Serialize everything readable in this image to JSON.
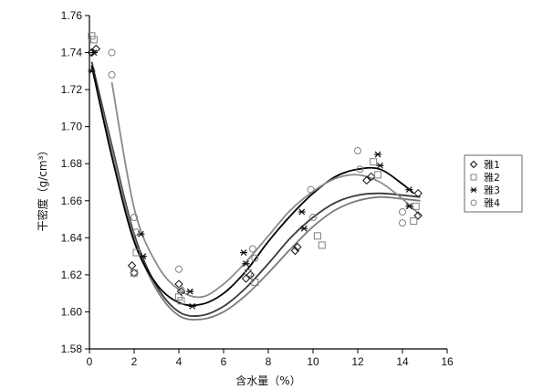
{
  "chart_data": {
    "type": "scatter",
    "title": "",
    "xlabel": "含水量（%）",
    "ylabel": "干密度（g/cm³）",
    "xlim": [
      0,
      16
    ],
    "ylim": [
      1.58,
      1.76
    ],
    "x_ticks": [
      0,
      2,
      4,
      6,
      8,
      10,
      12,
      14,
      16
    ],
    "y_ticks": [
      1.58,
      1.6,
      1.62,
      1.64,
      1.66,
      1.68,
      1.7,
      1.72,
      1.74,
      1.76
    ],
    "legend_position": "right",
    "grid": false,
    "series": [
      {
        "name": "雅1",
        "marker": "diamond",
        "points": [
          [
            0.1,
            1.74
          ],
          [
            0.3,
            1.742
          ],
          [
            1.9,
            1.625
          ],
          [
            2.0,
            1.621
          ],
          [
            4.0,
            1.615
          ],
          [
            4.1,
            1.611
          ],
          [
            7.0,
            1.618
          ],
          [
            7.2,
            1.62
          ],
          [
            9.2,
            1.633
          ],
          [
            9.3,
            1.635
          ],
          [
            12.4,
            1.671
          ],
          [
            12.6,
            1.673
          ],
          [
            14.7,
            1.664
          ],
          [
            14.7,
            1.652
          ]
        ],
        "fit": [
          [
            0.1,
            1.735
          ],
          [
            1.0,
            1.69
          ],
          [
            2.0,
            1.642
          ],
          [
            3.0,
            1.614
          ],
          [
            4.0,
            1.6
          ],
          [
            5.0,
            1.598
          ],
          [
            6.0,
            1.603
          ],
          [
            7.0,
            1.613
          ],
          [
            8.0,
            1.626
          ],
          [
            9.0,
            1.64
          ],
          [
            10.0,
            1.651
          ],
          [
            11.0,
            1.659
          ],
          [
            12.0,
            1.663
          ],
          [
            13.0,
            1.664
          ],
          [
            14.0,
            1.663
          ],
          [
            14.8,
            1.662
          ]
        ]
      },
      {
        "name": "雅2",
        "marker": "square",
        "points": [
          [
            0.1,
            1.749
          ],
          [
            0.2,
            1.747
          ],
          [
            2.0,
            1.621
          ],
          [
            2.1,
            1.632
          ],
          [
            4.0,
            1.608
          ],
          [
            4.1,
            1.606
          ],
          [
            7.1,
            1.621
          ],
          [
            7.4,
            1.616
          ],
          [
            10.2,
            1.641
          ],
          [
            10.4,
            1.636
          ],
          [
            12.7,
            1.681
          ],
          [
            12.9,
            1.674
          ],
          [
            14.5,
            1.649
          ],
          [
            14.6,
            1.657
          ]
        ],
        "fit": [
          [
            0.1,
            1.732
          ],
          [
            1.0,
            1.688
          ],
          [
            2.0,
            1.64
          ],
          [
            3.0,
            1.612
          ],
          [
            4.0,
            1.598
          ],
          [
            5.0,
            1.596
          ],
          [
            6.0,
            1.6
          ],
          [
            7.0,
            1.609
          ],
          [
            8.0,
            1.621
          ],
          [
            9.0,
            1.634
          ],
          [
            10.0,
            1.646
          ],
          [
            11.0,
            1.655
          ],
          [
            12.0,
            1.66
          ],
          [
            13.0,
            1.662
          ],
          [
            14.0,
            1.661
          ],
          [
            14.8,
            1.66
          ]
        ]
      },
      {
        "name": "雅3",
        "marker": "star",
        "points": [
          [
            0.1,
            1.73
          ],
          [
            0.2,
            1.74
          ],
          [
            2.3,
            1.642
          ],
          [
            2.4,
            1.63
          ],
          [
            4.5,
            1.611
          ],
          [
            4.6,
            1.603
          ],
          [
            6.9,
            1.632
          ],
          [
            7.0,
            1.626
          ],
          [
            9.5,
            1.654
          ],
          [
            9.6,
            1.645
          ],
          [
            12.9,
            1.685
          ],
          [
            13.0,
            1.679
          ],
          [
            14.3,
            1.666
          ],
          [
            14.3,
            1.657
          ]
        ],
        "fit": [
          [
            0.1,
            1.733
          ],
          [
            1.0,
            1.684
          ],
          [
            2.0,
            1.638
          ],
          [
            3.0,
            1.615
          ],
          [
            4.0,
            1.605
          ],
          [
            5.0,
            1.604
          ],
          [
            6.0,
            1.61
          ],
          [
            7.0,
            1.622
          ],
          [
            8.0,
            1.638
          ],
          [
            9.0,
            1.652
          ],
          [
            10.0,
            1.664
          ],
          [
            11.0,
            1.673
          ],
          [
            12.0,
            1.677
          ],
          [
            13.0,
            1.677
          ],
          [
            14.0,
            1.669
          ],
          [
            14.5,
            1.664
          ]
        ]
      },
      {
        "name": "雅4",
        "marker": "circle",
        "points": [
          [
            1.0,
            1.74
          ],
          [
            1.0,
            1.728
          ],
          [
            2.0,
            1.651
          ],
          [
            2.1,
            1.643
          ],
          [
            4.0,
            1.623
          ],
          [
            4.1,
            1.612
          ],
          [
            7.3,
            1.634
          ],
          [
            7.4,
            1.629
          ],
          [
            9.9,
            1.666
          ],
          [
            10.0,
            1.651
          ],
          [
            12.0,
            1.687
          ],
          [
            12.1,
            1.677
          ],
          [
            14.0,
            1.654
          ],
          [
            14.0,
            1.648
          ]
        ],
        "fit": [
          [
            1.0,
            1.724
          ],
          [
            2.0,
            1.656
          ],
          [
            3.0,
            1.626
          ],
          [
            4.0,
            1.612
          ],
          [
            5.0,
            1.608
          ],
          [
            6.0,
            1.615
          ],
          [
            7.0,
            1.627
          ],
          [
            8.0,
            1.641
          ],
          [
            9.0,
            1.655
          ],
          [
            10.0,
            1.665
          ],
          [
            11.0,
            1.672
          ],
          [
            12.0,
            1.674
          ],
          [
            13.0,
            1.67
          ],
          [
            14.0,
            1.661
          ],
          [
            14.8,
            1.652
          ]
        ]
      }
    ],
    "series_colors": [
      "#111111",
      "#808080",
      "#111111",
      "#808080"
    ],
    "fit_colors": [
      "#3a3a3a",
      "#7a7a7a",
      "#000000",
      "#8a8a8a"
    ]
  }
}
